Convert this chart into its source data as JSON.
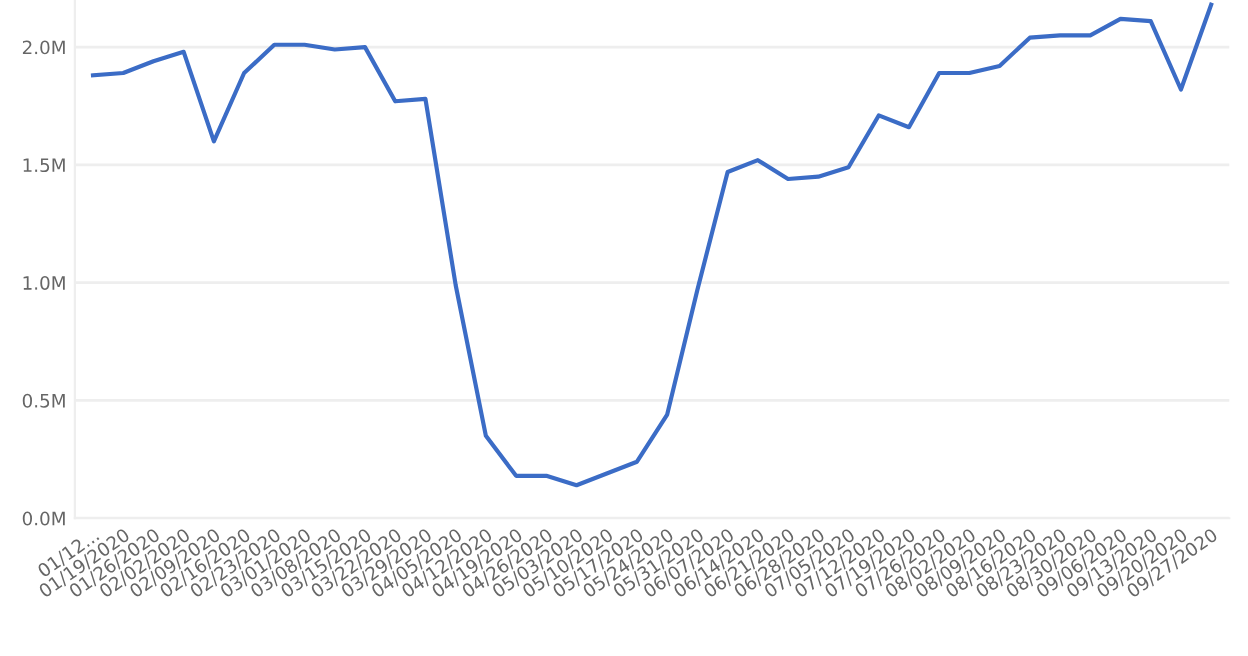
{
  "chart_data": {
    "type": "line",
    "categories": [
      "01/12...",
      "01/19/2020",
      "01/26/2020",
      "02/02/2020",
      "02/09/2020",
      "02/16/2020",
      "02/23/2020",
      "03/01/2020",
      "03/08/2020",
      "03/15/2020",
      "03/22/2020",
      "03/29/2020",
      "04/05/2020",
      "04/12/2020",
      "04/19/2020",
      "04/26/2020",
      "05/03/2020",
      "05/10/2020",
      "05/17/2020",
      "05/24/2020",
      "05/31/2020",
      "06/07/2020",
      "06/14/2020",
      "06/21/2020",
      "06/28/2020",
      "07/05/2020",
      "07/12/2020",
      "07/19/2020",
      "07/26/2020",
      "08/02/2020",
      "08/09/2020",
      "08/16/2020",
      "08/23/2020",
      "08/30/2020",
      "09/06/2020",
      "09/13/2020",
      "09/20/2020",
      "09/27/2020"
    ],
    "series": [
      {
        "color": "#3b6cc6",
        "values": [
          1.88,
          1.89,
          1.94,
          1.98,
          1.6,
          1.89,
          2.01,
          2.01,
          1.99,
          2.0,
          1.77,
          1.78,
          0.99,
          0.35,
          0.18,
          0.18,
          0.14,
          0.19,
          0.24,
          0.44,
          0.97,
          1.47,
          1.52,
          1.44,
          1.45,
          1.49,
          1.71,
          1.66,
          1.89,
          1.89,
          1.92,
          2.04,
          2.05,
          2.05,
          2.12,
          2.11,
          1.82,
          2.18
        ]
      }
    ],
    "ylim": [
      0,
      2.2
    ],
    "yticks": [
      {
        "value": 0,
        "label": "0.0M"
      },
      {
        "value": 0.5,
        "label": "0.5M"
      },
      {
        "value": 1.0,
        "label": "1.0M"
      },
      {
        "value": 1.5,
        "label": "1.5M"
      },
      {
        "value": 2.0,
        "label": "2.0M"
      }
    ],
    "grid": "y",
    "marker": "none",
    "line_style": "solid"
  }
}
